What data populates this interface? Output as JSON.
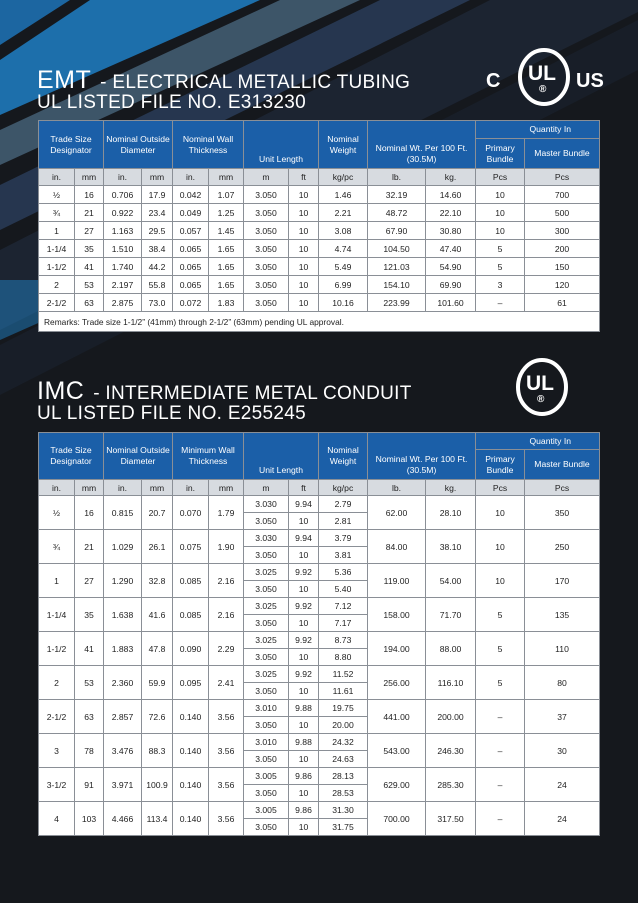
{
  "colors": {
    "background": "#15181d",
    "header_blue": "#1b5fa8",
    "units_gray": "#d7dbe0",
    "stripe_blue": "#1f7fc4",
    "stripe_light": "#6fa0c6"
  },
  "emt": {
    "code": "EMT",
    "name": "- ELECTRICAL METALLIC TUBING",
    "file": "UL LISTED FILE NO. E313230",
    "logo": {
      "left": "C",
      "center": "UL",
      "right": "US",
      "reg": "®"
    },
    "headers": {
      "trade_size": "Trade Size Designator",
      "outside_diameter": "Nominal Outside Diameter",
      "wall": "Nominal Wall Thickness",
      "length": "Unit Length",
      "weight": "Nominal Weight",
      "wt_per": "Nominal Wt. Per 100 Ft. (30.5M)",
      "quantity": "Quantity In",
      "primary": "Primary Bundle",
      "master": "Master Bundle"
    },
    "units": [
      "in.",
      "mm",
      "in.",
      "mm",
      "in.",
      "mm",
      "m",
      "ft",
      "kg/pc",
      "lb.",
      "kg.",
      "Pcs",
      "Pcs"
    ],
    "rows": [
      [
        "½",
        "16",
        "0.706",
        "17.9",
        "0.042",
        "1.07",
        "3.050",
        "10",
        "1.46",
        "32.19",
        "14.60",
        "10",
        "700"
      ],
      [
        "¾",
        "21",
        "0.922",
        "23.4",
        "0.049",
        "1.25",
        "3.050",
        "10",
        "2.21",
        "48.72",
        "22.10",
        "10",
        "500"
      ],
      [
        "1",
        "27",
        "1.163",
        "29.5",
        "0.057",
        "1.45",
        "3.050",
        "10",
        "3.08",
        "67.90",
        "30.80",
        "10",
        "300"
      ],
      [
        "1-1/4",
        "35",
        "1.510",
        "38.4",
        "0.065",
        "1.65",
        "3.050",
        "10",
        "4.74",
        "104.50",
        "47.40",
        "5",
        "200"
      ],
      [
        "1-1/2",
        "41",
        "1.740",
        "44.2",
        "0.065",
        "1.65",
        "3.050",
        "10",
        "5.49",
        "121.03",
        "54.90",
        "5",
        "150"
      ],
      [
        "2",
        "53",
        "2.197",
        "55.8",
        "0.065",
        "1.65",
        "3.050",
        "10",
        "6.99",
        "154.10",
        "69.90",
        "3",
        "120"
      ],
      [
        "2-1/2",
        "63",
        "2.875",
        "73.0",
        "0.072",
        "1.83",
        "3.050",
        "10",
        "10.16",
        "223.99",
        "101.60",
        "–",
        "61"
      ]
    ],
    "remarks": "Remarks: Trade size 1-1/2” (41mm) through 2-1/2” (63mm) pending UL approval."
  },
  "imc": {
    "code": "IMC",
    "name": "- INTERMEDIATE METAL CONDUIT",
    "file": "UL LISTED FILE NO. E255245",
    "logo": {
      "center": "UL",
      "reg": "®"
    },
    "headers": {
      "trade_size": "Trade Size Designator",
      "outside_diameter": "Nominal Outside Diameter",
      "wall": "Minimum Wall Thickness",
      "length": "Unit Length",
      "weight": "Nominal Weight",
      "wt_per": "Nominal Wt. Per 100 Ft. (30.5M)",
      "quantity": "Quantity In",
      "primary": "Primary Bundle",
      "master": "Master Bundle"
    },
    "units": [
      "in.",
      "mm",
      "in.",
      "mm",
      "in.",
      "mm",
      "m",
      "ft",
      "kg/pc",
      "lb.",
      "kg.",
      "Pcs",
      "Pcs"
    ],
    "rows": [
      {
        "size_in": "½",
        "size_mm": "16",
        "od_in": "0.815",
        "od_mm": "20.7",
        "wall_in": "0.070",
        "wall_mm": "1.79",
        "lengths": [
          [
            "3.030",
            "9.94",
            "2.79"
          ],
          [
            "3.050",
            "10",
            "2.81"
          ]
        ],
        "lb": "62.00",
        "kg": "28.10",
        "primary": "10",
        "master": "350"
      },
      {
        "size_in": "¾",
        "size_mm": "21",
        "od_in": "1.029",
        "od_mm": "26.1",
        "wall_in": "0.075",
        "wall_mm": "1.90",
        "lengths": [
          [
            "3.030",
            "9.94",
            "3.79"
          ],
          [
            "3.050",
            "10",
            "3.81"
          ]
        ],
        "lb": "84.00",
        "kg": "38.10",
        "primary": "10",
        "master": "250"
      },
      {
        "size_in": "1",
        "size_mm": "27",
        "od_in": "1.290",
        "od_mm": "32.8",
        "wall_in": "0.085",
        "wall_mm": "2.16",
        "lengths": [
          [
            "3.025",
            "9.92",
            "5.36"
          ],
          [
            "3.050",
            "10",
            "5.40"
          ]
        ],
        "lb": "119.00",
        "kg": "54.00",
        "primary": "10",
        "master": "170"
      },
      {
        "size_in": "1-1/4",
        "size_mm": "35",
        "od_in": "1.638",
        "od_mm": "41.6",
        "wall_in": "0.085",
        "wall_mm": "2.16",
        "lengths": [
          [
            "3.025",
            "9.92",
            "7.12"
          ],
          [
            "3.050",
            "10",
            "7.17"
          ]
        ],
        "lb": "158.00",
        "kg": "71.70",
        "primary": "5",
        "master": "135"
      },
      {
        "size_in": "1-1/2",
        "size_mm": "41",
        "od_in": "1.883",
        "od_mm": "47.8",
        "wall_in": "0.090",
        "wall_mm": "2.29",
        "lengths": [
          [
            "3.025",
            "9.92",
            "8.73"
          ],
          [
            "3.050",
            "10",
            "8.80"
          ]
        ],
        "lb": "194.00",
        "kg": "88.00",
        "primary": "5",
        "master": "110"
      },
      {
        "size_in": "2",
        "size_mm": "53",
        "od_in": "2.360",
        "od_mm": "59.9",
        "wall_in": "0.095",
        "wall_mm": "2.41",
        "lengths": [
          [
            "3.025",
            "9.92",
            "11.52"
          ],
          [
            "3.050",
            "10",
            "11.61"
          ]
        ],
        "lb": "256.00",
        "kg": "116.10",
        "primary": "5",
        "master": "80"
      },
      {
        "size_in": "2-1/2",
        "size_mm": "63",
        "od_in": "2.857",
        "od_mm": "72.6",
        "wall_in": "0.140",
        "wall_mm": "3.56",
        "lengths": [
          [
            "3.010",
            "9.88",
            "19.75"
          ],
          [
            "3.050",
            "10",
            "20.00"
          ]
        ],
        "lb": "441.00",
        "kg": "200.00",
        "primary": "–",
        "master": "37"
      },
      {
        "size_in": "3",
        "size_mm": "78",
        "od_in": "3.476",
        "od_mm": "88.3",
        "wall_in": "0.140",
        "wall_mm": "3.56",
        "lengths": [
          [
            "3.010",
            "9.88",
            "24.32"
          ],
          [
            "3.050",
            "10",
            "24.63"
          ]
        ],
        "lb": "543.00",
        "kg": "246.30",
        "primary": "–",
        "master": "30"
      },
      {
        "size_in": "3-1/2",
        "size_mm": "91",
        "od_in": "3.971",
        "od_mm": "100.9",
        "wall_in": "0.140",
        "wall_mm": "3.56",
        "lengths": [
          [
            "3.005",
            "9.86",
            "28.13"
          ],
          [
            "3.050",
            "10",
            "28.53"
          ]
        ],
        "lb": "629.00",
        "kg": "285.30",
        "primary": "–",
        "master": "24"
      },
      {
        "size_in": "4",
        "size_mm": "103",
        "od_in": "4.466",
        "od_mm": "113.4",
        "wall_in": "0.140",
        "wall_mm": "3.56",
        "lengths": [
          [
            "3.005",
            "9.86",
            "31.30"
          ],
          [
            "3.050",
            "10",
            "31.75"
          ]
        ],
        "lb": "700.00",
        "kg": "317.50",
        "primary": "–",
        "master": "24"
      }
    ]
  }
}
